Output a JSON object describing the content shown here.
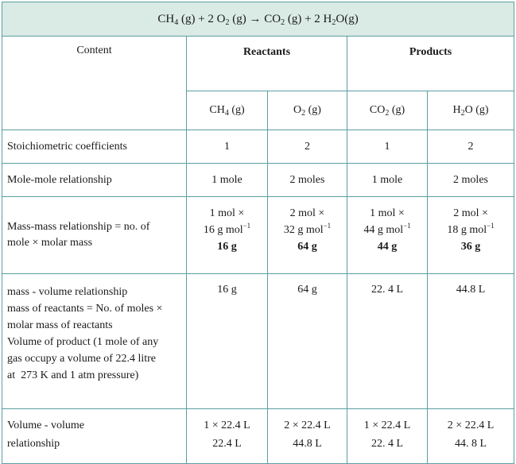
{
  "equation": {
    "ch4": "CH",
    "ch4_sub": "4",
    "ch4_state": " (g) + 2 O",
    "o2_sub": "2",
    "o2_state": " (g) → CO",
    "co2_sub": "2",
    "co2_state": " (g) + 2 H",
    "h2o_sub": "2",
    "h2o_state": "O(g)"
  },
  "headers": {
    "content": "Content",
    "reactants": "Reactants",
    "products": "Products",
    "species": [
      {
        "base": "CH",
        "sub": "4",
        "after": " (g)"
      },
      {
        "base": "O",
        "sub": "2",
        "after": " (g)"
      },
      {
        "base": "CO",
        "sub": "2",
        "after": " (g)"
      },
      {
        "base": "H",
        "sub": "2",
        "after": "O (g)"
      }
    ]
  },
  "rows": {
    "coefficients": {
      "label": "Stoichiometric coefficients",
      "values": [
        "1",
        "2",
        "1",
        "2"
      ]
    },
    "mole_mole": {
      "label": "Mole-mole relationship",
      "values": [
        "1 mole",
        "2 moles",
        "1 mole",
        "2 moles"
      ]
    },
    "mass_mass": {
      "label_line1": "Mass-mass relationship = no. of",
      "label_line2": "mole × molar mass",
      "cells": [
        {
          "line1": "1 mol ×",
          "line2": "16 g mol",
          "exp": "−1",
          "total": "16 g"
        },
        {
          "line1": "2 mol ×",
          "line2": "32 g mol",
          "exp": "−1",
          "total": "64 g"
        },
        {
          "line1": "1 mol ×",
          "line2": "44 g mol",
          "exp": "−1",
          "total": "44 g"
        },
        {
          "line1": "2 mol ×",
          "line2": "18 g mol",
          "exp": "−1",
          "total": "36 g"
        }
      ]
    },
    "mass_volume": {
      "label_lines": [
        "mass - volume relationship",
        "mass of reactants = No. of moles ×",
        "molar mass of reactants",
        "Volume of product (1 mole of any",
        "gas occupy a volume of 22.4 litre",
        "at  273 K and 1 atm pressure)"
      ],
      "values": [
        "16 g",
        "64 g",
        "22. 4 L",
        "44.8 L"
      ]
    },
    "volume_volume": {
      "label_line1": "Volume - volume",
      "label_line2": "relationship",
      "cells": [
        {
          "line1": "1 × 22.4 L",
          "line2": "22.4 L"
        },
        {
          "line1": "2 × 22.4 L",
          "line2": "44.8 L"
        },
        {
          "line1": "1 × 22.4 L",
          "line2": "22. 4 L"
        },
        {
          "line1": "2 × 22.4 L",
          "line2": "44. 8 L"
        }
      ]
    }
  },
  "colors": {
    "border": "#5b9ea3",
    "header_bg": "#d9ebe4"
  }
}
